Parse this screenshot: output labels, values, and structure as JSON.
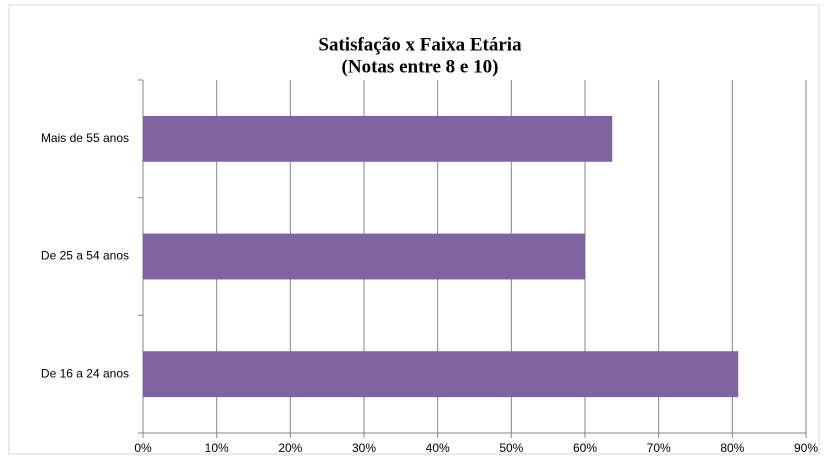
{
  "chart_data": {
    "type": "hbar",
    "title": "Satisfação x Faixa Etária",
    "subtitle": "(Notas entre 8 e 10)",
    "categories": [
      "Mais de 55 anos",
      "De 25 a 54 anos",
      "De 16 a 24 anos"
    ],
    "values": [
      63.7,
      60,
      80.8
    ],
    "color": "#8064a2",
    "xlim": [
      0,
      90
    ],
    "xticks": [
      {
        "value": 0,
        "label": "0%"
      },
      {
        "value": 10,
        "label": "10%"
      },
      {
        "value": 20,
        "label": "20%"
      },
      {
        "value": 30,
        "label": "30%"
      },
      {
        "value": 40,
        "label": "40%"
      },
      {
        "value": 50,
        "label": "50%"
      },
      {
        "value": 60,
        "label": "60%"
      },
      {
        "value": 70,
        "label": "70%"
      },
      {
        "value": 80,
        "label": "80%"
      },
      {
        "value": 90,
        "label": "90%"
      }
    ],
    "grid": true
  }
}
